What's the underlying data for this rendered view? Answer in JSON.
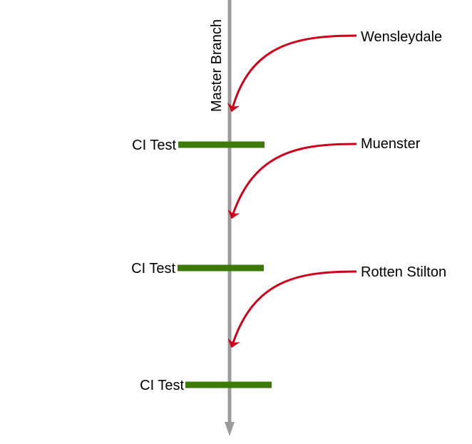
{
  "branch": {
    "label": "Master Branch",
    "color": "#9b9b9b"
  },
  "ci_tests": [
    {
      "label": "CI Test"
    },
    {
      "label": "CI Test"
    },
    {
      "label": "CI Test"
    }
  ],
  "ci_color": "#3d7a0a",
  "merges": [
    {
      "label": "Wensleydale"
    },
    {
      "label": "Muenster"
    },
    {
      "label": "Rotten Stilton"
    }
  ],
  "arrow_color": "#d0021b"
}
